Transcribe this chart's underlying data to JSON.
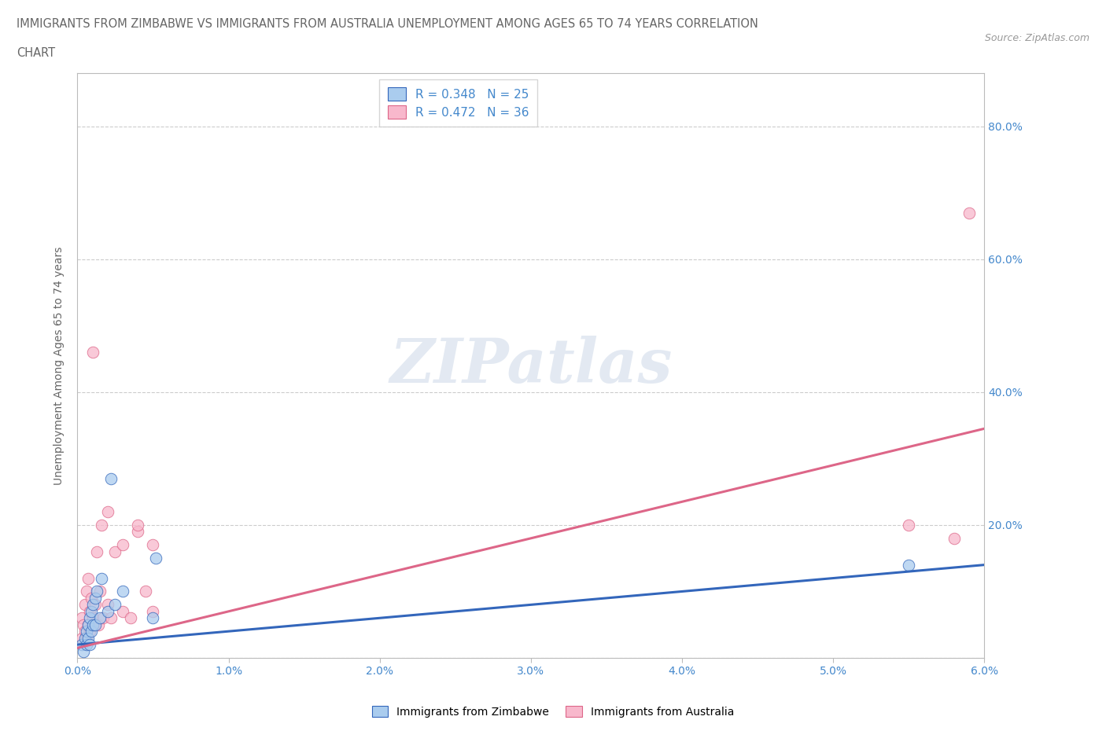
{
  "title_line1": "IMMIGRANTS FROM ZIMBABWE VS IMMIGRANTS FROM AUSTRALIA UNEMPLOYMENT AMONG AGES 65 TO 74 YEARS CORRELATION",
  "title_line2": "CHART",
  "source": "Source: ZipAtlas.com",
  "ylabel": "Unemployment Among Ages 65 to 74 years",
  "xlim": [
    0.0,
    0.06
  ],
  "ylim": [
    0.0,
    0.88
  ],
  "xticks": [
    0.0,
    0.01,
    0.02,
    0.03,
    0.04,
    0.05,
    0.06
  ],
  "xticklabels": [
    "0.0%",
    "1.0%",
    "2.0%",
    "3.0%",
    "4.0%",
    "5.0%",
    "6.0%"
  ],
  "yticks": [
    0.2,
    0.4,
    0.6,
    0.8
  ],
  "yticklabels": [
    "20.0%",
    "40.0%",
    "60.0%",
    "80.0%"
  ],
  "legend_zimbabwe": "R = 0.348   N = 25",
  "legend_australia": "R = 0.472   N = 36",
  "color_zimbabwe": "#aaccee",
  "color_australia": "#f8b8cc",
  "line_color_zimbabwe": "#3366bb",
  "line_color_australia": "#dd6688",
  "watermark": "ZIPatlas",
  "watermark_color": "#ccd8e8",
  "background_color": "#ffffff",
  "grid_color": "#cccccc",
  "zimbabwe_x": [
    0.0003,
    0.0004,
    0.0005,
    0.0006,
    0.0006,
    0.0007,
    0.0007,
    0.0008,
    0.0008,
    0.0009,
    0.0009,
    0.001,
    0.001,
    0.0012,
    0.0012,
    0.0013,
    0.0015,
    0.0016,
    0.002,
    0.0022,
    0.0025,
    0.003,
    0.005,
    0.0052,
    0.055
  ],
  "zimbabwe_y": [
    0.02,
    0.01,
    0.03,
    0.02,
    0.04,
    0.03,
    0.05,
    0.02,
    0.06,
    0.04,
    0.07,
    0.05,
    0.08,
    0.05,
    0.09,
    0.1,
    0.06,
    0.12,
    0.07,
    0.27,
    0.08,
    0.1,
    0.06,
    0.15,
    0.14
  ],
  "australia_x": [
    0.0003,
    0.0003,
    0.0004,
    0.0005,
    0.0005,
    0.0006,
    0.0006,
    0.0007,
    0.0007,
    0.0008,
    0.0008,
    0.0009,
    0.001,
    0.001,
    0.0011,
    0.0012,
    0.0013,
    0.0014,
    0.0015,
    0.0016,
    0.0017,
    0.002,
    0.002,
    0.0022,
    0.0025,
    0.003,
    0.003,
    0.0035,
    0.004,
    0.004,
    0.0045,
    0.005,
    0.005,
    0.055,
    0.058,
    0.059
  ],
  "australia_y": [
    0.03,
    0.06,
    0.05,
    0.04,
    0.08,
    0.03,
    0.1,
    0.05,
    0.12,
    0.04,
    0.07,
    0.09,
    0.06,
    0.46,
    0.05,
    0.08,
    0.16,
    0.05,
    0.1,
    0.2,
    0.06,
    0.08,
    0.22,
    0.06,
    0.16,
    0.07,
    0.17,
    0.06,
    0.19,
    0.2,
    0.1,
    0.07,
    0.17,
    0.2,
    0.18,
    0.67
  ],
  "R_zimbabwe": 0.348,
  "N_zimbabwe": 25,
  "R_australia": 0.472,
  "N_australia": 36
}
